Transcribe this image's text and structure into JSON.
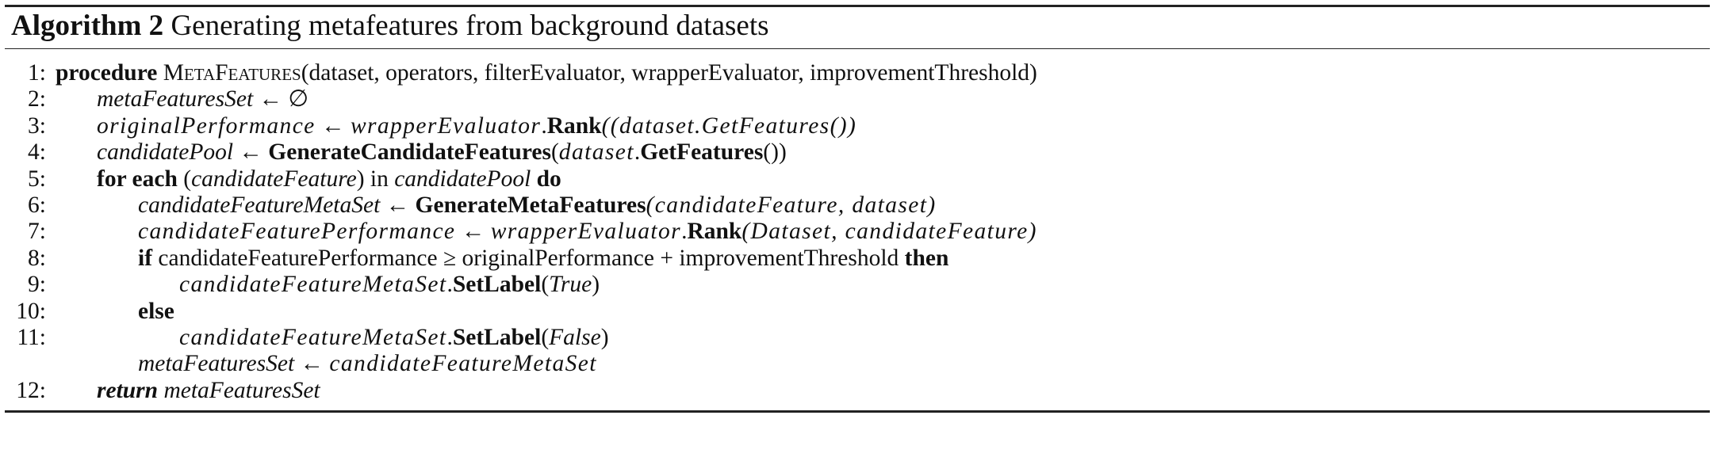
{
  "title": {
    "label": "Algorithm 2",
    "text": "Generating metafeatures from background datasets"
  },
  "lines": [
    {
      "num": "1:",
      "parts": {
        "kw": "procedure",
        "name": "MetaFeatures",
        "args": "(dataset, operators, filterEvaluator, wrapperEvaluator, improvementThreshold)"
      }
    },
    {
      "num": "2:",
      "parts": {
        "var": "metaFeaturesSet",
        "arrow": " ← ",
        "rest": "∅"
      }
    },
    {
      "num": "3:",
      "parts": {
        "var": "originalPerformance",
        "arrow": " ← ",
        "obj": "wrapperEvaluator",
        "dot": ".",
        "fn": "Rank",
        "args": "((dataset.GetFeatures())"
      }
    },
    {
      "num": "4:",
      "parts": {
        "var": "candidatePool",
        "arrow": " ← ",
        "fn": "GenerateCandidateFeatures",
        "open": "(",
        "obj": "dataset",
        "dot": ".",
        "fn2": "GetFeatures",
        "close": "())"
      }
    },
    {
      "num": "5:",
      "parts": {
        "kw": "for each",
        "open": " (",
        "var": "candidateFeature",
        "mid": ") in ",
        "var2": "candidatePool",
        "kw2": " do"
      }
    },
    {
      "num": "6:",
      "parts": {
        "var": "candidateFeatureMetaSet",
        "arrow": " ← ",
        "fn": "GenerateMetaFeatures",
        "args": "(candidateFeature, dataset)"
      }
    },
    {
      "num": "7:",
      "parts": {
        "var": "candidateFeaturePerformance",
        "arrow": " ← ",
        "obj": "wrapperEvaluator",
        "dot": ".",
        "fn": "Rank",
        "args": "(Dataset, candidateFeature)"
      }
    },
    {
      "num": "8:",
      "parts": {
        "kw": "if",
        "cond": " candidateFeaturePerformance ≥ originalPerformance + improvementThreshold ",
        "kw2": "then"
      }
    },
    {
      "num": "9:",
      "parts": {
        "obj": "candidateFeatureMetaSet",
        "dot": ".",
        "fn": "SetLabel",
        "open": "(",
        "val": "True",
        "close": ")"
      }
    },
    {
      "num": "10:",
      "parts": {
        "kw": "else"
      }
    },
    {
      "num": "11:",
      "parts": {
        "obj": "candidateFeatureMetaSet",
        "dot": ".",
        "fn": "SetLabel",
        "open": "(",
        "val": "False",
        "close": ")"
      }
    },
    {
      "num": "",
      "parts": {
        "var": "metaFeaturesSet",
        "arrow": " ← ",
        "rest": "candidateFeatureMetaSet"
      }
    },
    {
      "num": "12:",
      "parts": {
        "kw": "return",
        "var": " metaFeaturesSet"
      }
    }
  ]
}
